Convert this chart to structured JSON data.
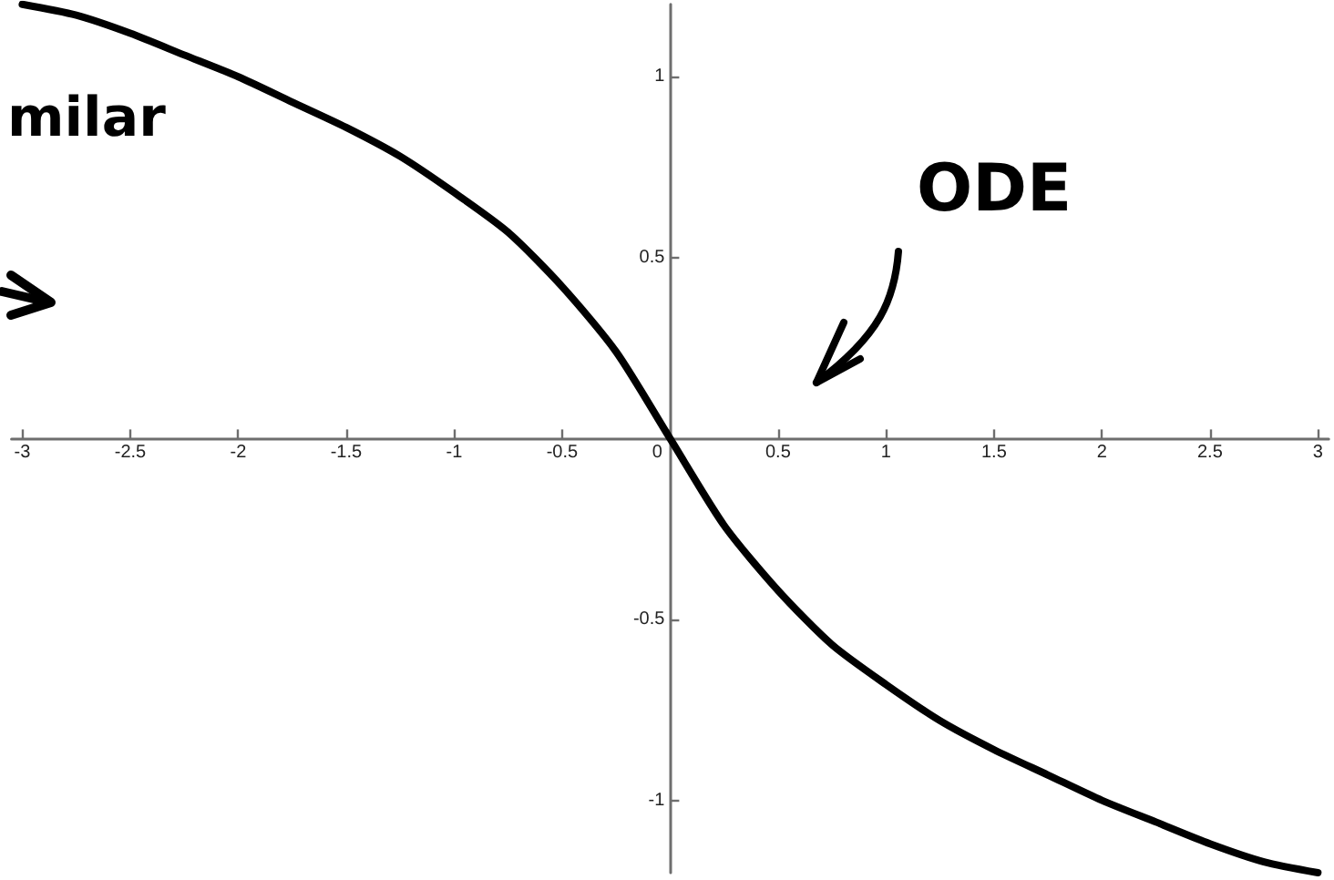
{
  "chart_data": {
    "type": "line",
    "x": [
      -3,
      -2.75,
      -2.5,
      -2.25,
      -2,
      -1.75,
      -1.5,
      -1.25,
      -1,
      -0.75,
      -0.5,
      -0.25,
      0,
      0.25,
      0.5,
      0.75,
      1,
      1.25,
      1.5,
      1.75,
      2,
      2.25,
      2.5,
      2.75,
      3
    ],
    "series": [
      {
        "color": "#000000",
        "values": [
          1.2,
          1.17,
          1.12,
          1.06,
          1.0,
          0.93,
          0.86,
          0.78,
          0.68,
          0.57,
          0.42,
          0.24,
          0,
          -0.24,
          -0.42,
          -0.57,
          -0.68,
          -0.78,
          -0.86,
          -0.93,
          -1.0,
          -1.06,
          -1.12,
          -1.17,
          -1.2
        ]
      }
    ],
    "xlim": [
      -3.05,
      3.05
    ],
    "ylim": [
      -1.2,
      1.2
    ],
    "xticks": [
      -3,
      -2.5,
      -2,
      -1.5,
      -1,
      -0.5,
      0,
      0.5,
      1,
      1.5,
      2,
      2.5,
      3
    ],
    "yticks": [
      -1,
      -0.5,
      0.5,
      1
    ],
    "marker": "none",
    "line_style": "solid",
    "annotations": [
      "milar",
      "ODE"
    ]
  }
}
